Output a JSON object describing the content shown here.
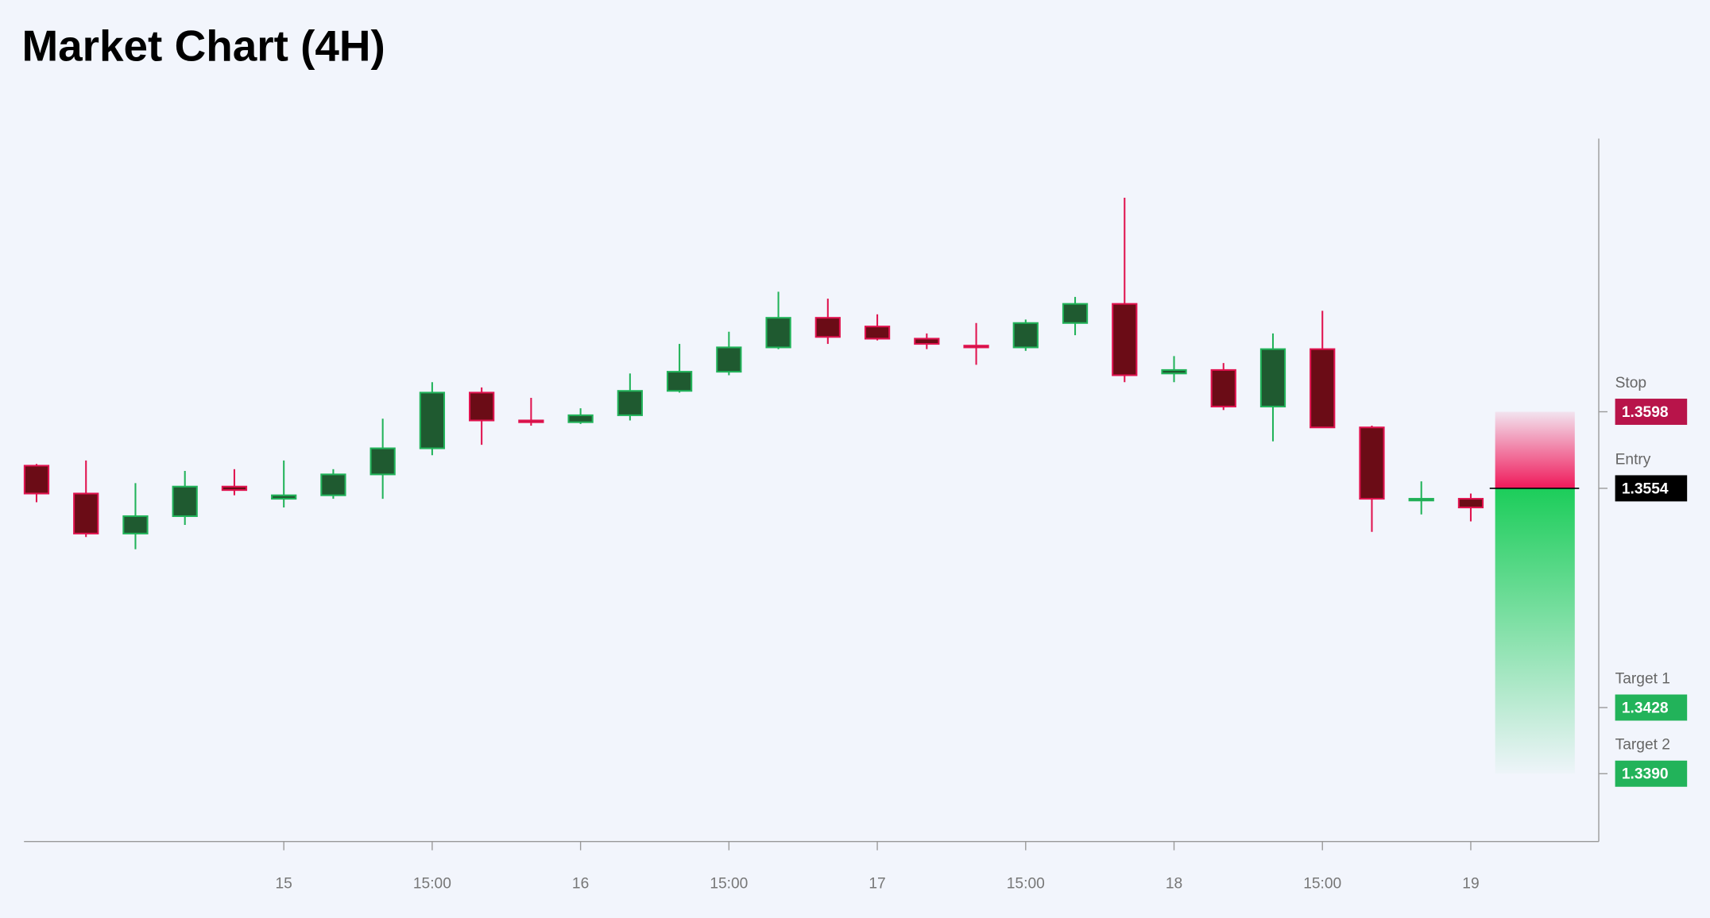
{
  "chart_data": {
    "type": "candlestick",
    "title": "Market Chart (4H)",
    "categories": [
      null,
      null,
      null,
      null,
      null,
      "15",
      null,
      null,
      "15:00",
      null,
      null,
      "16",
      null,
      null,
      "15:00",
      null,
      null,
      "17",
      null,
      null,
      "15:00",
      null,
      null,
      "18",
      null,
      null,
      "15:00",
      null,
      null,
      "19"
    ],
    "open": [
      1.3567,
      1.3551,
      1.3528,
      1.3538,
      1.3555,
      1.3548,
      1.355,
      1.3562,
      1.3577,
      1.3609,
      1.3593,
      1.3592,
      1.3596,
      1.361,
      1.3621,
      1.3635,
      1.3652,
      1.3647,
      1.364,
      1.3636,
      1.3635,
      1.3649,
      1.366,
      1.362,
      1.3622,
      1.3601,
      1.3634,
      1.3589,
      1.3547,
      1.3548
    ],
    "high": [
      1.3568,
      1.357,
      1.3557,
      1.3564,
      1.3565,
      1.357,
      1.3565,
      1.3594,
      1.3615,
      1.3612,
      1.3606,
      1.36,
      1.362,
      1.3637,
      1.3644,
      1.3667,
      1.3663,
      1.3654,
      1.3643,
      1.3649,
      1.3651,
      1.3664,
      1.3721,
      1.363,
      1.3626,
      1.3643,
      1.3656,
      1.359,
      1.3558,
      1.3551
    ],
    "low": [
      1.3546,
      1.3526,
      1.3519,
      1.3533,
      1.355,
      1.3543,
      1.3548,
      1.3548,
      1.3573,
      1.3579,
      1.359,
      1.3591,
      1.3593,
      1.3609,
      1.3619,
      1.3634,
      1.3637,
      1.3639,
      1.3634,
      1.3625,
      1.3633,
      1.3642,
      1.3615,
      1.3615,
      1.3599,
      1.3581,
      1.3589,
      1.3529,
      1.3539,
      1.3535
    ],
    "close": [
      1.3551,
      1.3528,
      1.3538,
      1.3555,
      1.3553,
      1.355,
      1.3562,
      1.3577,
      1.3609,
      1.3593,
      1.3592,
      1.3596,
      1.361,
      1.3621,
      1.3635,
      1.3652,
      1.3641,
      1.364,
      1.3637,
      1.3635,
      1.3649,
      1.366,
      1.3619,
      1.3622,
      1.3601,
      1.3634,
      1.3589,
      1.3548,
      1.3548,
      1.3543
    ],
    "up_color": "#1f5a30",
    "up_border": "#22b35a",
    "down_color": "#6b0c16",
    "down_border": "#e0134f",
    "ylim": [
      1.3351,
      1.3755
    ],
    "levels": {
      "names": [
        "Stop",
        "Entry",
        "Target 1",
        "Target 2"
      ],
      "values": [
        1.3598,
        1.3554,
        1.3428,
        1.339
      ],
      "value_labels": [
        "1.3598",
        "1.3554",
        "1.3428",
        "1.3390"
      ],
      "colors": [
        "#b8144a",
        "#000000",
        "#22b35a",
        "#22b35a"
      ]
    }
  }
}
